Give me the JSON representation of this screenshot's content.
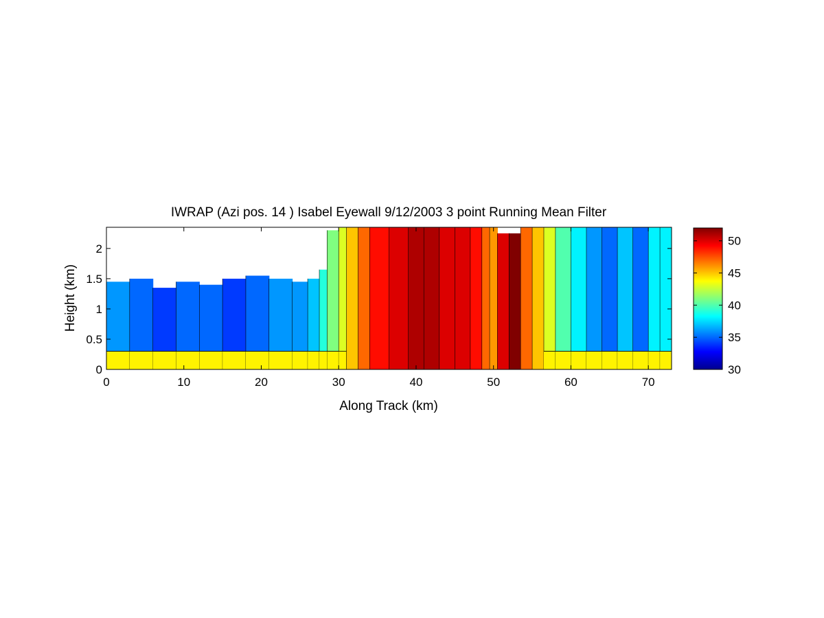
{
  "chart_data": {
    "type": "heatmap",
    "title": "IWRAP (Azi pos. 14 ) Isabel Eyewall 9/12/2003 3 point Running Mean Filter",
    "xlabel": "Along Track (km)",
    "ylabel": "Height (km)",
    "xlim": [
      0,
      73
    ],
    "ylim": [
      0,
      2.35
    ],
    "x_ticks": [
      "0",
      "10",
      "20",
      "30",
      "40",
      "50",
      "60",
      "70"
    ],
    "y_ticks": [
      "0",
      "0.5",
      "1",
      "1.5",
      "2"
    ],
    "colorbar": {
      "colormap": "jet",
      "range": [
        30,
        52
      ],
      "ticks": [
        "30",
        "35",
        "40",
        "45",
        "50"
      ]
    },
    "x_segments_km": [
      0,
      3,
      6,
      9,
      12,
      15,
      18,
      21,
      24,
      26,
      27.5,
      28.5,
      30,
      31,
      32.5,
      34,
      36.5,
      39,
      41,
      43,
      45,
      47,
      48.5,
      49.5,
      50.5,
      52,
      53.5,
      55,
      56.5,
      58,
      60,
      62,
      64,
      66,
      68,
      70,
      71.5,
      73
    ],
    "column_values": [
      36,
      35,
      34,
      35,
      35,
      34,
      35,
      36,
      36,
      37,
      39,
      41,
      43,
      45,
      47,
      49,
      50,
      51,
      51,
      50,
      50,
      49,
      47,
      46,
      50,
      52,
      47,
      45,
      43,
      40,
      38,
      36,
      35,
      37,
      35,
      38,
      38
    ],
    "cloud_top_km": [
      1.45,
      1.5,
      1.35,
      1.45,
      1.4,
      1.5,
      1.55,
      1.5,
      1.45,
      1.5,
      1.65,
      2.3,
      2.35,
      2.35,
      2.35,
      2.35,
      2.35,
      2.35,
      2.35,
      2.35,
      2.35,
      2.35,
      2.35,
      2.35,
      2.25,
      2.25,
      2.35,
      2.35,
      2.35,
      2.35,
      2.35,
      2.35,
      2.35,
      2.35,
      2.35,
      2.35,
      2.35
    ],
    "surface_layer": {
      "height_km": 0.3,
      "value": 44
    }
  }
}
